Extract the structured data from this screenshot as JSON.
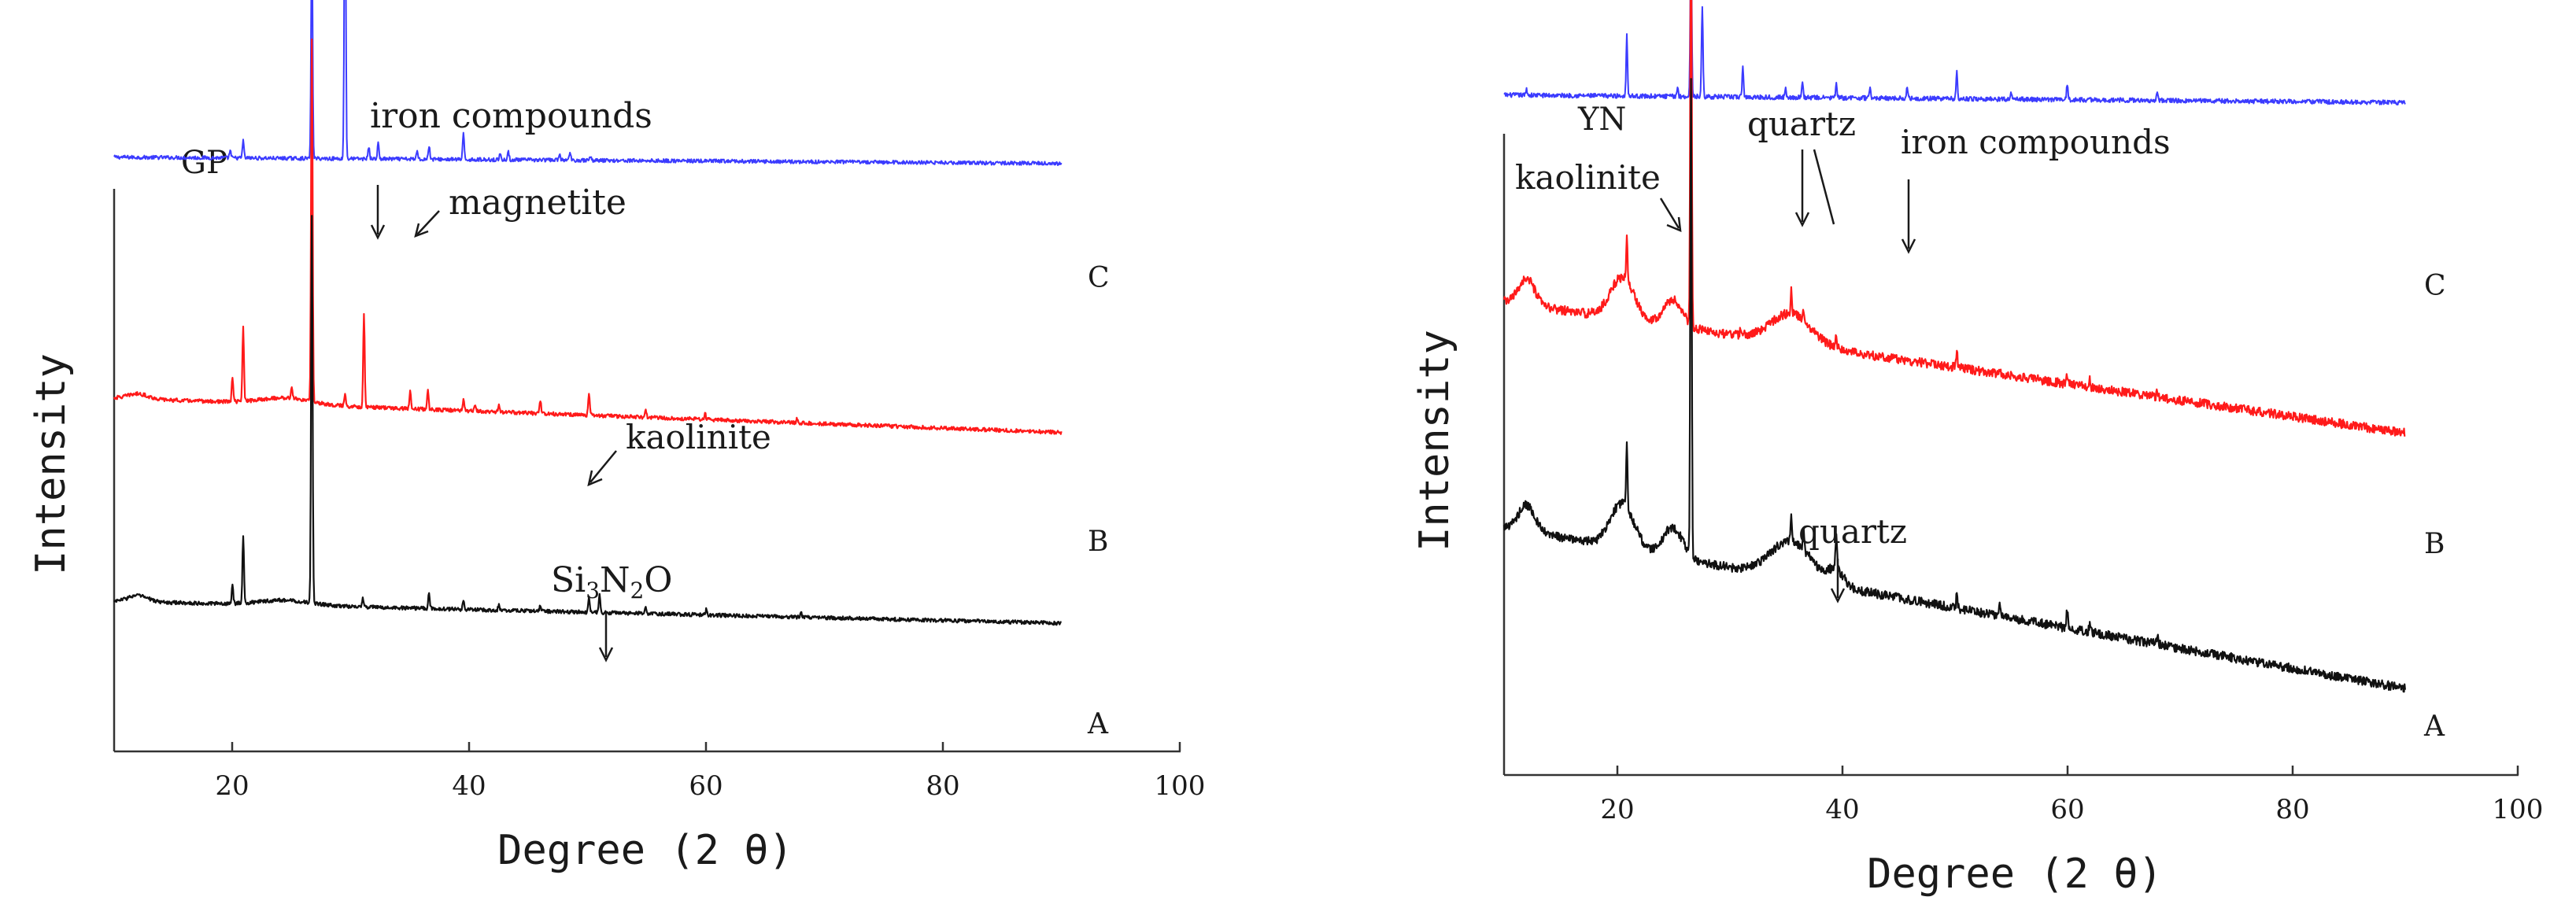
{
  "figure": {
    "colors": {
      "C": "#3b3bff",
      "B": "#ff1a1a",
      "A": "#111111",
      "axis": "#333333",
      "text": "#1a1a1a"
    }
  },
  "chart_data": [
    {
      "type": "line",
      "panel_label": "GP",
      "xlabel": "Degree (2 θ)",
      "ylabel": "Intensity",
      "xlim": [
        10,
        100
      ],
      "xticks": [
        20,
        40,
        60,
        80,
        100
      ],
      "y_units": "arbitrary (curves vertically offset, no y ticks)",
      "series": [
        {
          "name": "C",
          "x_range": [
            10,
            90
          ],
          "baseline": 0.95,
          "end": 0.94,
          "noise": 0.003,
          "humps": [],
          "peaks": [
            [
              19.8,
              0.012
            ],
            [
              20.9,
              0.028
            ],
            [
              26.7,
              0.36
            ],
            [
              29.5,
              0.54
            ],
            [
              31.5,
              0.02
            ],
            [
              32.3,
              0.025
            ],
            [
              35.6,
              0.015
            ],
            [
              36.6,
              0.022
            ],
            [
              39.5,
              0.04
            ],
            [
              42.6,
              0.01
            ],
            [
              43.3,
              0.012
            ],
            [
              47.6,
              0.01
            ],
            [
              48.5,
              0.012
            ],
            [
              50.2,
              0.008
            ]
          ]
        },
        {
          "name": "B",
          "x_range": [
            10,
            90
          ],
          "baseline": 0.565,
          "end": 0.51,
          "noise": 0.003,
          "humps": [
            [
              12.0,
              0.008,
              1.2
            ],
            [
              24.5,
              0.01,
              3.0
            ]
          ],
          "peaks": [
            [
              20.0,
              0.04
            ],
            [
              20.9,
              0.12
            ],
            [
              25.0,
              0.02
            ],
            [
              26.7,
              0.58
            ],
            [
              29.5,
              0.02
            ],
            [
              31.1,
              0.15
            ],
            [
              35.0,
              0.03
            ],
            [
              36.5,
              0.03
            ],
            [
              39.5,
              0.018
            ],
            [
              40.5,
              0.012
            ],
            [
              42.5,
              0.01
            ],
            [
              46.0,
              0.02
            ],
            [
              50.1,
              0.035
            ],
            [
              54.9,
              0.012
            ],
            [
              59.9,
              0.01
            ],
            [
              67.7,
              0.008
            ]
          ]
        },
        {
          "name": "A",
          "x_range": [
            10,
            90
          ],
          "baseline": 0.24,
          "end": 0.205,
          "noise": 0.003,
          "humps": [
            [
              12.0,
              0.01,
              1.2
            ],
            [
              24.5,
              0.008,
              3.0
            ]
          ],
          "peaks": [
            [
              20.0,
              0.03
            ],
            [
              20.9,
              0.11
            ],
            [
              26.7,
              0.62
            ],
            [
              31.0,
              0.015
            ],
            [
              36.6,
              0.025
            ],
            [
              39.5,
              0.015
            ],
            [
              42.5,
              0.01
            ],
            [
              46.0,
              0.01
            ],
            [
              50.1,
              0.025
            ],
            [
              51.0,
              0.03
            ],
            [
              54.9,
              0.01
            ],
            [
              60.0,
              0.008
            ],
            [
              68.0,
              0.008
            ]
          ]
        }
      ],
      "annotations": [
        {
          "text": "iron compounds",
          "arrow": true
        },
        {
          "text": "magnetite",
          "arrow": true
        },
        {
          "text": "kaolinite",
          "arrow": true
        },
        {
          "text": "Si",
          "sub1": "3",
          "mid": "N",
          "sub2": "2",
          "tail": "O",
          "arrow": true
        }
      ],
      "curve_labels": [
        "C",
        "B",
        "A"
      ]
    },
    {
      "type": "line",
      "panel_label": "YN",
      "xlabel": "Degree (2 θ)",
      "ylabel": "Intensity",
      "xlim": [
        10,
        100
      ],
      "xticks": [
        20,
        40,
        60,
        80,
        100
      ],
      "y_units": "arbitrary (curves vertically offset, no y ticks)",
      "series": [
        {
          "name": "C",
          "x_range": [
            10,
            90
          ],
          "baseline": 0.905,
          "end": 0.895,
          "noise": 0.003,
          "humps": [],
          "peaks": [
            [
              12.0,
              0.008
            ],
            [
              20.9,
              0.08
            ],
            [
              25.4,
              0.012
            ],
            [
              26.6,
              0.2
            ],
            [
              27.6,
              0.12
            ],
            [
              31.2,
              0.04
            ],
            [
              35.0,
              0.012
            ],
            [
              36.5,
              0.02
            ],
            [
              39.5,
              0.018
            ],
            [
              42.5,
              0.012
            ],
            [
              45.8,
              0.015
            ],
            [
              50.2,
              0.035
            ],
            [
              55.0,
              0.01
            ],
            [
              60.0,
              0.02
            ],
            [
              68.0,
              0.012
            ]
          ]
        },
        {
          "name": "B",
          "x_range": [
            10,
            90
          ],
          "baseline": 0.63,
          "end": 0.455,
          "noise": 0.006,
          "humps": [
            [
              12.0,
              0.035,
              1.0
            ],
            [
              20.5,
              0.055,
              1.5
            ],
            [
              25.0,
              0.035,
              1.2
            ],
            [
              35.5,
              0.04,
              2.5
            ]
          ],
          "peaks": [
            [
              20.9,
              0.06
            ],
            [
              26.6,
              0.55
            ],
            [
              31.0,
              0.01
            ],
            [
              35.5,
              0.03
            ],
            [
              36.6,
              0.015
            ],
            [
              39.5,
              0.015
            ],
            [
              50.2,
              0.02
            ],
            [
              54.0,
              0.01
            ],
            [
              60.0,
              0.012
            ],
            [
              62.0,
              0.01
            ],
            [
              68.0,
              0.008
            ]
          ]
        },
        {
          "name": "A",
          "x_range": [
            10,
            90
          ],
          "baseline": 0.33,
          "end": 0.115,
          "noise": 0.006,
          "humps": [
            [
              12.0,
              0.035,
              1.0
            ],
            [
              20.5,
              0.06,
              1.5
            ],
            [
              25.0,
              0.04,
              1.2
            ],
            [
              35.5,
              0.05,
              2.5
            ],
            [
              39.5,
              0.02,
              1.0
            ]
          ],
          "peaks": [
            [
              20.9,
              0.09
            ],
            [
              26.6,
              0.63
            ],
            [
              35.5,
              0.035
            ],
            [
              36.6,
              0.025
            ],
            [
              39.5,
              0.05
            ],
            [
              50.2,
              0.02
            ],
            [
              54.0,
              0.012
            ],
            [
              60.0,
              0.025
            ],
            [
              62.0,
              0.01
            ],
            [
              68.0,
              0.01
            ]
          ]
        }
      ],
      "annotations": [
        {
          "text": "kaolinite",
          "arrow": true
        },
        {
          "text": "quartz",
          "arrow": true
        },
        {
          "text": "iron compounds",
          "arrow": true
        },
        {
          "text": "quartz",
          "arrow": true
        }
      ],
      "curve_labels": [
        "C",
        "B",
        "A"
      ]
    }
  ]
}
